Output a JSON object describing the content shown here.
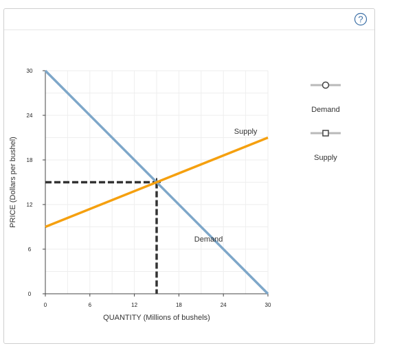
{
  "help_icon": "question-circle-icon",
  "chart_data": {
    "type": "line",
    "xlabel": "QUANTITY (Millions of bushels)",
    "ylabel": "PRICE (Dollars per bushel)",
    "xlim": [
      0,
      30
    ],
    "ylim": [
      0,
      30
    ],
    "xticks": [
      0,
      6,
      12,
      18,
      24,
      30
    ],
    "yticks": [
      0,
      6,
      12,
      18,
      24,
      30
    ],
    "grid": true,
    "legend_position": "right",
    "series": [
      {
        "name": "Demand",
        "color": "#7ea7c9",
        "marker": "circle",
        "points": [
          [
            0,
            30
          ],
          [
            30,
            0
          ]
        ],
        "curve_label": "Demand",
        "curve_label_at": [
          22,
          7
        ]
      },
      {
        "name": "Supply",
        "color": "#f5a00f",
        "marker": "square",
        "points": [
          [
            0,
            9
          ],
          [
            30,
            21
          ]
        ],
        "curve_label": "Supply",
        "curve_label_at": [
          27,
          21.5
        ]
      }
    ],
    "equilibrium": {
      "quantity": 15,
      "price": 15,
      "color": "#333333"
    }
  }
}
